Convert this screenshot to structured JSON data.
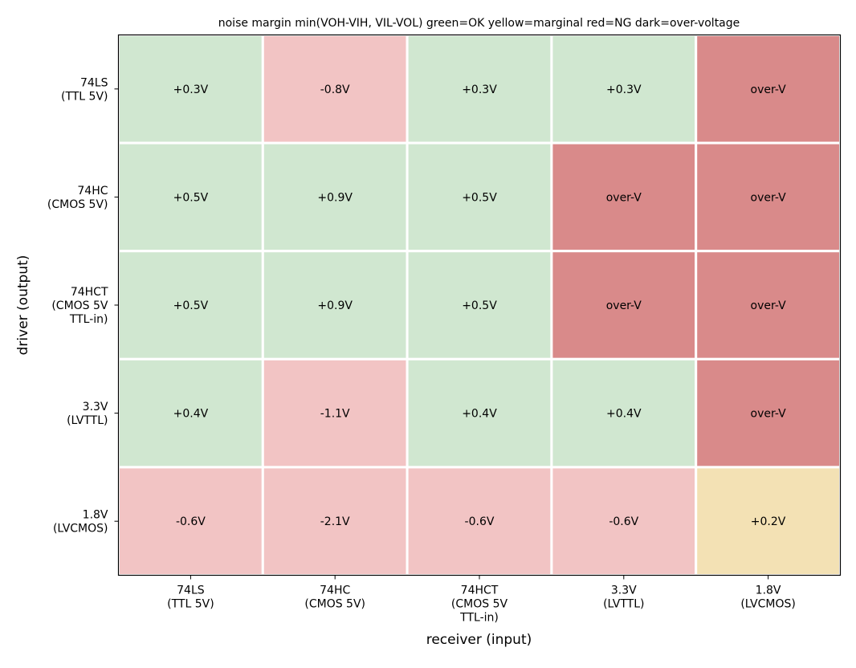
{
  "chart_data": {
    "type": "heatmap",
    "title": "noise margin  min(VOH-VIH, VIL-VOL)   green=OK  yellow=marginal  red=NG  dark=over-voltage",
    "xlabel": "receiver (input)",
    "ylabel": "driver (output)",
    "x_categories": [
      [
        "74LS",
        "(TTL 5V)"
      ],
      [
        "74HC",
        "(CMOS 5V)"
      ],
      [
        "74HCT",
        "(CMOS 5V",
        "TTL-in)"
      ],
      [
        "3.3V",
        "(LVTTL)"
      ],
      [
        "1.8V",
        "(LVCMOS)"
      ]
    ],
    "y_categories": [
      [
        "74LS",
        "(TTL 5V)"
      ],
      [
        "74HC",
        "(CMOS 5V)"
      ],
      [
        "74HCT",
        "(CMOS 5V",
        "TTL-in)"
      ],
      [
        "3.3V",
        "(LVTTL)"
      ],
      [
        "1.8V",
        "(LVCMOS)"
      ]
    ],
    "cells": [
      [
        {
          "label": "+0.3V",
          "status": "ok"
        },
        {
          "label": "-0.8V",
          "status": "ng"
        },
        {
          "label": "+0.3V",
          "status": "ok"
        },
        {
          "label": "+0.3V",
          "status": "ok"
        },
        {
          "label": "over-V",
          "status": "over"
        }
      ],
      [
        {
          "label": "+0.5V",
          "status": "ok"
        },
        {
          "label": "+0.9V",
          "status": "ok"
        },
        {
          "label": "+0.5V",
          "status": "ok"
        },
        {
          "label": "over-V",
          "status": "over"
        },
        {
          "label": "over-V",
          "status": "over"
        }
      ],
      [
        {
          "label": "+0.5V",
          "status": "ok"
        },
        {
          "label": "+0.9V",
          "status": "ok"
        },
        {
          "label": "+0.5V",
          "status": "ok"
        },
        {
          "label": "over-V",
          "status": "over"
        },
        {
          "label": "over-V",
          "status": "over"
        }
      ],
      [
        {
          "label": "+0.4V",
          "status": "ok"
        },
        {
          "label": "-1.1V",
          "status": "ng"
        },
        {
          "label": "+0.4V",
          "status": "ok"
        },
        {
          "label": "+0.4V",
          "status": "ok"
        },
        {
          "label": "over-V",
          "status": "over"
        }
      ],
      [
        {
          "label": "-0.6V",
          "status": "ng"
        },
        {
          "label": "-2.1V",
          "status": "ng"
        },
        {
          "label": "-0.6V",
          "status": "ng"
        },
        {
          "label": "-0.6V",
          "status": "ng"
        },
        {
          "label": "+0.2V",
          "status": "marginal"
        }
      ]
    ],
    "status_colors": {
      "ok": "#d0e7d0",
      "ng": "#f2c4c4",
      "over": "#d98a8a",
      "marginal": "#f3e1b4"
    },
    "grid": false
  }
}
